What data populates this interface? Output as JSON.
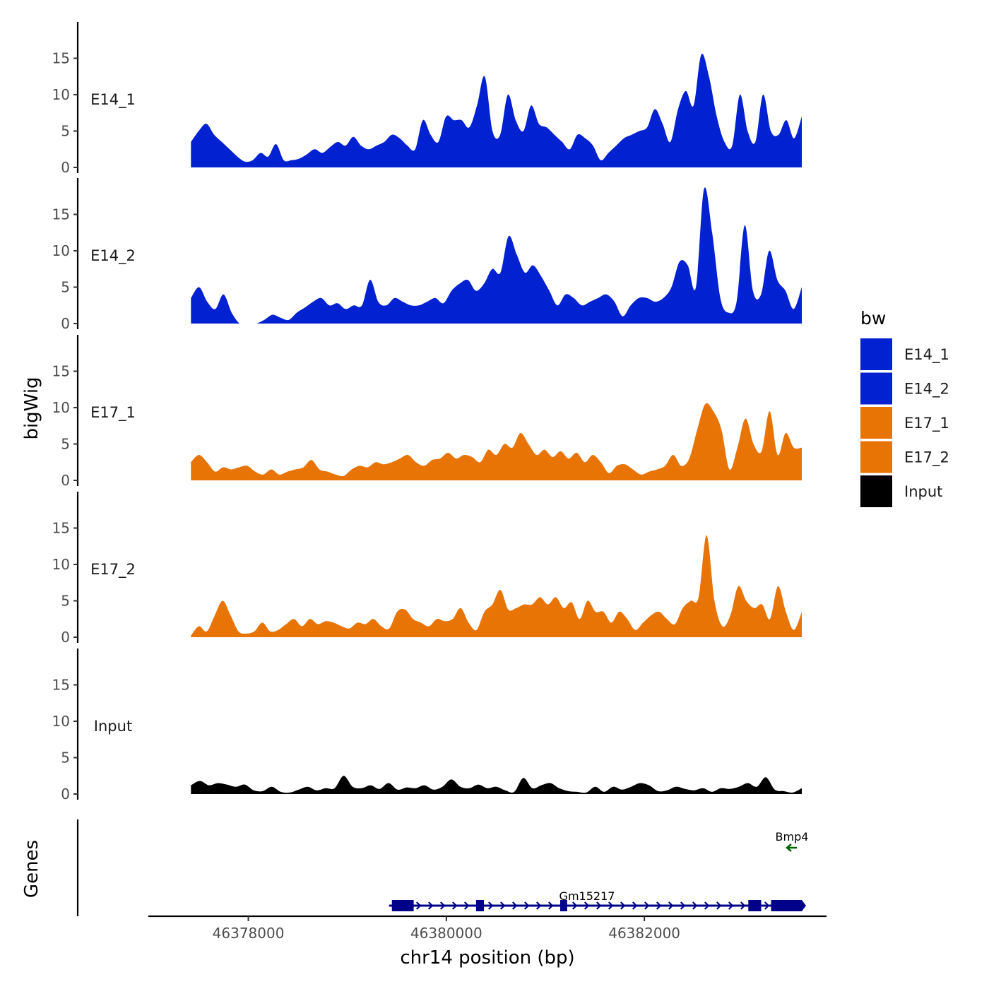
{
  "chart_data": {
    "type": "area",
    "ylabel": "bigWig",
    "xlabel": "chr14 position (bp)",
    "ylim": [
      0,
      20
    ],
    "yticks": [
      "0",
      "5",
      "10",
      "15"
    ],
    "xlim": [
      46376990,
      46383840
    ],
    "xticks": [
      46378000,
      46380000,
      46382000
    ],
    "xtick_labels": [
      "46378000",
      "46380000",
      "46382000"
    ],
    "x_start": 46377420,
    "x_end": 46383590,
    "legend": {
      "title": "bw",
      "entries": [
        {
          "label": "E14_1",
          "color": "#0221D1"
        },
        {
          "label": "E14_2",
          "color": "#0221D1"
        },
        {
          "label": "E17_1",
          "color": "#E87406"
        },
        {
          "label": "E17_2",
          "color": "#E87406"
        },
        {
          "label": "Input",
          "color": "#000000"
        }
      ]
    },
    "series": [
      {
        "name": "E14_1",
        "color": "#0221D1",
        "values": [
          3.5,
          5.0,
          6.0,
          4.5,
          3.5,
          2.5,
          1.5,
          0.8,
          1.0,
          2.0,
          1.5,
          3.2,
          1.0,
          1.0,
          1.2,
          1.8,
          2.5,
          2.0,
          2.8,
          3.5,
          3.0,
          4.2,
          3.0,
          2.5,
          3.0,
          3.5,
          4.5,
          4.0,
          3.0,
          2.5,
          6.5,
          4.5,
          3.5,
          7.0,
          6.5,
          6.5,
          5.5,
          8.5,
          12.5,
          5.0,
          4.5,
          10.0,
          6.5,
          5.0,
          8.5,
          6.0,
          5.5,
          4.5,
          3.5,
          2.5,
          4.5,
          4.0,
          3.0,
          1.0,
          2.0,
          3.0,
          4.0,
          4.5,
          5.0,
          5.5,
          8.0,
          6.0,
          3.5,
          8.0,
          10.5,
          8.5,
          15.5,
          12.5,
          7.0,
          3.5,
          3.0,
          10.0,
          5.0,
          3.5,
          10.0,
          5.0,
          4.5,
          6.5,
          4.0,
          7.0
        ]
      },
      {
        "name": "E14_2",
        "color": "#0221D1",
        "values": [
          3.5,
          5.0,
          3.0,
          2.0,
          4.0,
          1.5,
          0.0,
          0.0,
          0.0,
          0.5,
          1.2,
          0.8,
          0.5,
          1.5,
          2.2,
          3.0,
          3.5,
          2.5,
          2.8,
          2.0,
          2.5,
          2.5,
          6.0,
          3.0,
          2.5,
          3.5,
          3.0,
          2.5,
          2.5,
          3.0,
          3.5,
          2.8,
          4.5,
          5.5,
          6.0,
          4.5,
          5.5,
          7.5,
          7.0,
          12.0,
          9.5,
          7.0,
          8.0,
          6.5,
          4.5,
          2.5,
          4.0,
          3.5,
          2.5,
          3.0,
          3.5,
          4.0,
          3.0,
          1.0,
          2.5,
          3.5,
          3.5,
          3.0,
          3.5,
          5.0,
          8.5,
          8.0,
          5.0,
          18.5,
          12.5,
          3.5,
          1.5,
          3.0,
          13.5,
          4.5,
          4.0,
          10.0,
          6.0,
          4.5,
          2.0,
          5.0
        ]
      },
      {
        "name": "E17_1",
        "color": "#E87406",
        "values": [
          2.5,
          3.5,
          2.5,
          1.2,
          1.8,
          1.5,
          1.8,
          2.0,
          1.2,
          0.8,
          1.5,
          0.8,
          1.2,
          1.5,
          1.8,
          2.8,
          1.5,
          1.2,
          0.8,
          0.6,
          1.5,
          2.0,
          1.8,
          2.5,
          2.2,
          2.5,
          3.0,
          3.5,
          2.5,
          2.0,
          2.8,
          3.0,
          3.8,
          3.0,
          3.5,
          3.2,
          2.5,
          4.2,
          3.5,
          5.0,
          4.5,
          6.5,
          5.0,
          3.5,
          4.2,
          3.2,
          4.0,
          3.0,
          3.8,
          2.5,
          3.5,
          2.5,
          1.0,
          2.0,
          2.2,
          1.5,
          0.8,
          1.2,
          1.5,
          2.0,
          3.5,
          2.0,
          3.0,
          7.0,
          10.5,
          9.5,
          7.0,
          1.5,
          4.5,
          8.5,
          5.0,
          4.0,
          9.5,
          3.5,
          6.5,
          4.5,
          4.5
        ]
      },
      {
        "name": "E17_2",
        "color": "#E87406",
        "values": [
          0.2,
          1.5,
          0.8,
          3.0,
          5.0,
          3.0,
          0.8,
          0.5,
          0.8,
          2.0,
          0.8,
          1.0,
          1.8,
          2.5,
          1.5,
          2.5,
          1.8,
          2.2,
          2.0,
          1.5,
          1.2,
          2.0,
          1.8,
          2.5,
          1.5,
          1.2,
          3.5,
          3.8,
          2.5,
          2.0,
          1.5,
          2.5,
          2.2,
          2.5,
          4.0,
          2.0,
          1.0,
          3.5,
          4.5,
          6.5,
          3.8,
          4.0,
          4.5,
          4.5,
          5.5,
          4.5,
          5.5,
          4.0,
          4.8,
          2.5,
          5.0,
          3.5,
          3.5,
          2.0,
          3.5,
          2.5,
          1.0,
          2.0,
          3.0,
          3.5,
          2.5,
          1.8,
          4.0,
          5.0,
          5.5,
          14.0,
          5.0,
          1.5,
          3.0,
          7.0,
          5.0,
          4.0,
          4.5,
          2.5,
          7.0,
          3.5,
          1.0,
          3.5
        ]
      },
      {
        "name": "Input",
        "color": "#000000",
        "values": [
          1.2,
          1.8,
          1.2,
          1.5,
          1.3,
          1.0,
          1.3,
          0.5,
          0.4,
          1.0,
          0.3,
          0.2,
          0.6,
          1.0,
          0.5,
          0.8,
          0.8,
          2.5,
          1.0,
          0.8,
          1.2,
          0.7,
          1.5,
          0.6,
          0.9,
          0.8,
          1.2,
          0.6,
          1.0,
          2.0,
          1.0,
          0.8,
          1.3,
          0.8,
          1.0,
          0.5,
          0.3,
          2.2,
          0.8,
          1.2,
          1.5,
          0.8,
          0.4,
          0.3,
          0.2,
          1.0,
          0.3,
          1.0,
          0.6,
          1.0,
          1.5,
          1.2,
          0.4,
          0.5,
          1.0,
          0.7,
          0.5,
          0.8,
          0.3,
          0.8,
          0.7,
          1.0,
          1.5,
          1.0,
          2.3,
          0.6,
          0.4,
          0.2,
          0.8
        ]
      }
    ],
    "genes_panel": {
      "label": "Genes",
      "genes": [
        {
          "name": "Gm15217",
          "strand": "+",
          "start": 46379450,
          "end": 46383590,
          "exons": [
            [
              46379450,
              46379670
            ],
            [
              46380300,
              46380380
            ],
            [
              46381150,
              46381220
            ],
            [
              46383050,
              46383180
            ],
            [
              46383280,
              46383590
            ]
          ],
          "color": "#00008B"
        },
        {
          "name": "Bmp4",
          "strand": "-",
          "start": 46383460,
          "end": 46383560,
          "exons": [],
          "color": "#006400"
        }
      ]
    }
  }
}
